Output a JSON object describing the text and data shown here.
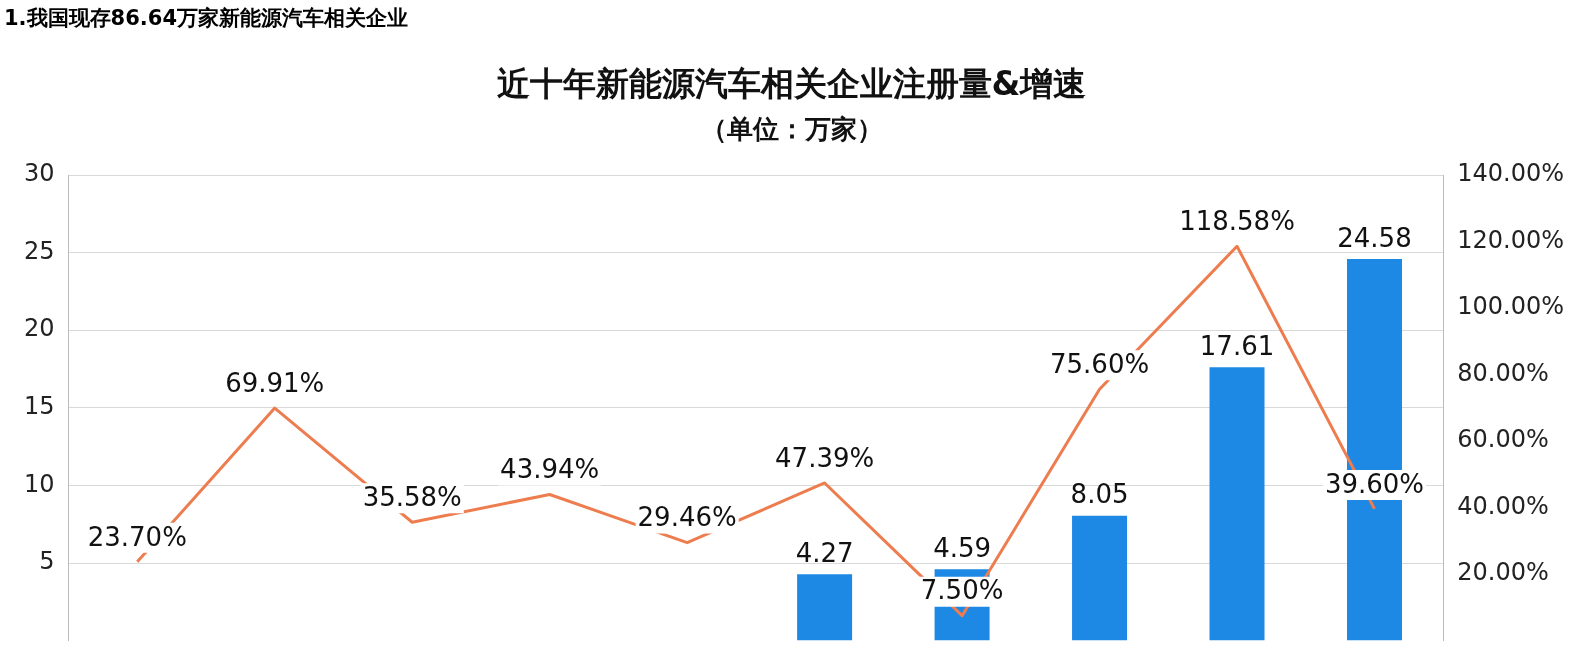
{
  "chart_data": {
    "type": "bar",
    "title": "近十年新能源汽车相关企业注册量&增速",
    "subtitle": "（单位：万家）",
    "annotations": [
      "1.我国现存86.64万家新能源汽车相关企业"
    ],
    "categories": [
      null,
      null,
      null,
      null,
      null,
      null,
      null,
      null,
      null,
      null
    ],
    "series": [
      {
        "color": "#1e88e5",
        "values": [
          null,
          null,
          null,
          null,
          null,
          4.27,
          4.59,
          8.05,
          17.61,
          24.58
        ]
      },
      {
        "type": "line",
        "axis": "y2",
        "color": "#ed7d4f",
        "values": [
          23.7,
          69.91,
          35.58,
          43.94,
          29.46,
          47.39,
          7.5,
          75.6,
          118.58,
          39.6
        ],
        "value_labels": [
          "23.70%",
          "69.91%",
          "35.58%",
          "43.94%",
          "29.46%",
          "47.39%",
          "7.50%",
          "75.60%",
          "118.58%",
          "39.60%"
        ]
      }
    ],
    "ylim": [
      0,
      30
    ],
    "yticks": [
      5,
      10,
      15,
      20,
      25,
      30
    ],
    "y2lim": [
      0,
      140
    ],
    "y2ticks": [
      {
        "value": 20,
        "label": "20.00%"
      },
      {
        "value": 40,
        "label": "40.00%"
      },
      {
        "value": 60,
        "label": "60.00%"
      },
      {
        "value": 80,
        "label": "80.00%"
      },
      {
        "value": 100,
        "label": "100.00%"
      },
      {
        "value": 120,
        "label": "120.00%"
      },
      {
        "value": 140,
        "label": "140.00%"
      }
    ],
    "grid": "y",
    "legend": false,
    "data_labels": true,
    "marker": "none",
    "line_style": "solid"
  }
}
